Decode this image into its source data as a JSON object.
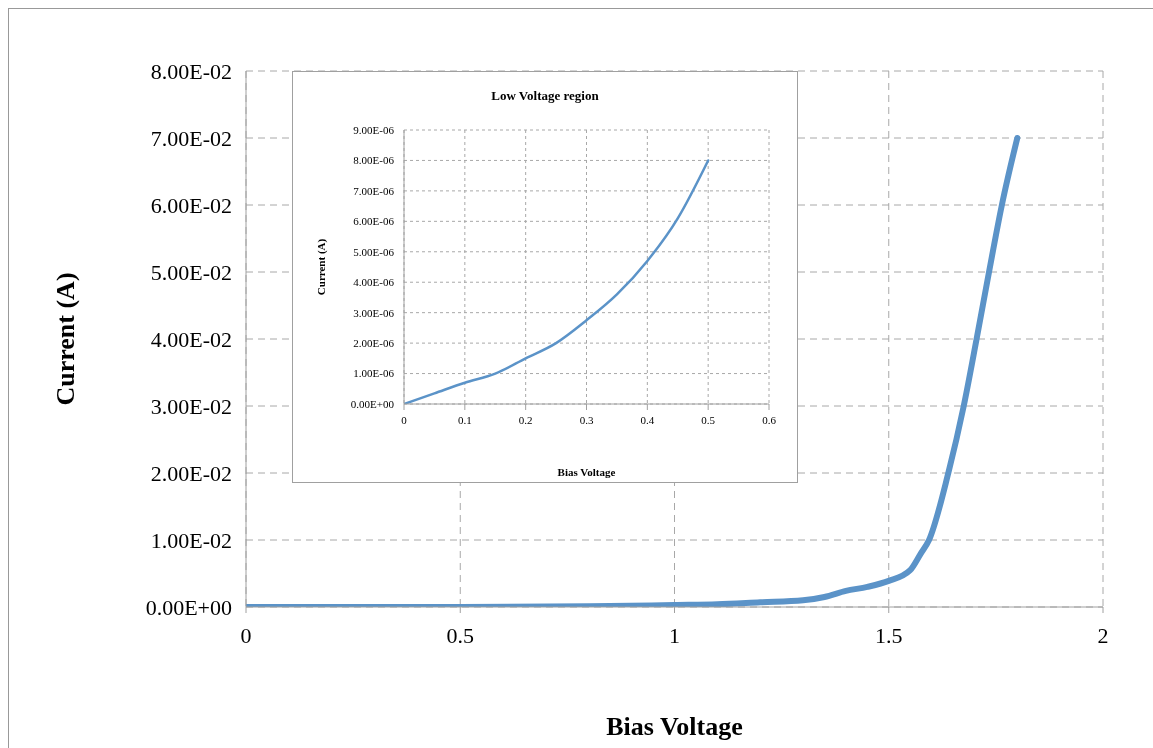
{
  "chart_data": [
    {
      "type": "line",
      "xlabel": "Bias Voltage",
      "ylabel": "Current (A)",
      "x": [
        0,
        0.5,
        0.8,
        1.0,
        1.1,
        1.2,
        1.3,
        1.35,
        1.4,
        1.45,
        1.5,
        1.55,
        1.574,
        1.594,
        1.639,
        1.675,
        1.705,
        1.734,
        1.764,
        1.8
      ],
      "series": [
        {
          "color": "#5b93c8",
          "values": [
            0,
            0,
            0.0001,
            0.0003,
            0.0004,
            0.0007,
            0.001,
            0.0015,
            0.0024,
            0.003,
            0.0039,
            0.0055,
            0.0079,
            0.01,
            0.02,
            0.03,
            0.04,
            0.05,
            0.06,
            0.07
          ]
        }
      ],
      "xlim": [
        0,
        2
      ],
      "xticks": [
        0,
        0.5,
        1,
        1.5,
        2
      ],
      "ylim": [
        0,
        0.08
      ],
      "yticks": [
        {
          "value": 0,
          "label": "0.00E+00"
        },
        {
          "value": 0.01,
          "label": "1.00E-02"
        },
        {
          "value": 0.02,
          "label": "2.00E-02"
        },
        {
          "value": 0.03,
          "label": "3.00E-02"
        },
        {
          "value": 0.04,
          "label": "4.00E-02"
        },
        {
          "value": 0.05,
          "label": "5.00E-02"
        },
        {
          "value": 0.06,
          "label": "6.00E-02"
        },
        {
          "value": 0.07,
          "label": "7.00E-02"
        },
        {
          "value": 0.08,
          "label": "8.00E-02"
        }
      ],
      "grid": true,
      "marker": "none"
    },
    {
      "type": "line",
      "title": "Low Voltage region",
      "xlabel": "Bias Voltage",
      "ylabel": "Current (A)",
      "x": [
        0,
        0.05,
        0.1,
        0.15,
        0.2,
        0.25,
        0.3,
        0.35,
        0.4,
        0.45,
        0.5
      ],
      "series": [
        {
          "color": "#5b93c8",
          "values": [
            0,
            3.5e-07,
            7e-07,
            1e-06,
            1.5e-06,
            2e-06,
            2.75e-06,
            3.6e-06,
            4.7e-06,
            6.1e-06,
            8e-06
          ]
        }
      ],
      "xlim": [
        0,
        0.6
      ],
      "xticks": [
        0,
        0.1,
        0.2,
        0.3,
        0.4,
        0.5,
        0.6
      ],
      "ylim": [
        0,
        9e-06
      ],
      "yticks": [
        {
          "value": 0,
          "label": "0.00E+00"
        },
        {
          "value": 1e-06,
          "label": "1.00E-06"
        },
        {
          "value": 2e-06,
          "label": "2.00E-06"
        },
        {
          "value": 3e-06,
          "label": "3.00E-06"
        },
        {
          "value": 4e-06,
          "label": "4.00E-06"
        },
        {
          "value": 5e-06,
          "label": "5.00E-06"
        },
        {
          "value": 6e-06,
          "label": "6.00E-06"
        },
        {
          "value": 7e-06,
          "label": "7.00E-06"
        },
        {
          "value": 8e-06,
          "label": "8.00E-06"
        },
        {
          "value": 9e-06,
          "label": "9.00E-06"
        }
      ],
      "grid": true,
      "marker": "none"
    }
  ]
}
